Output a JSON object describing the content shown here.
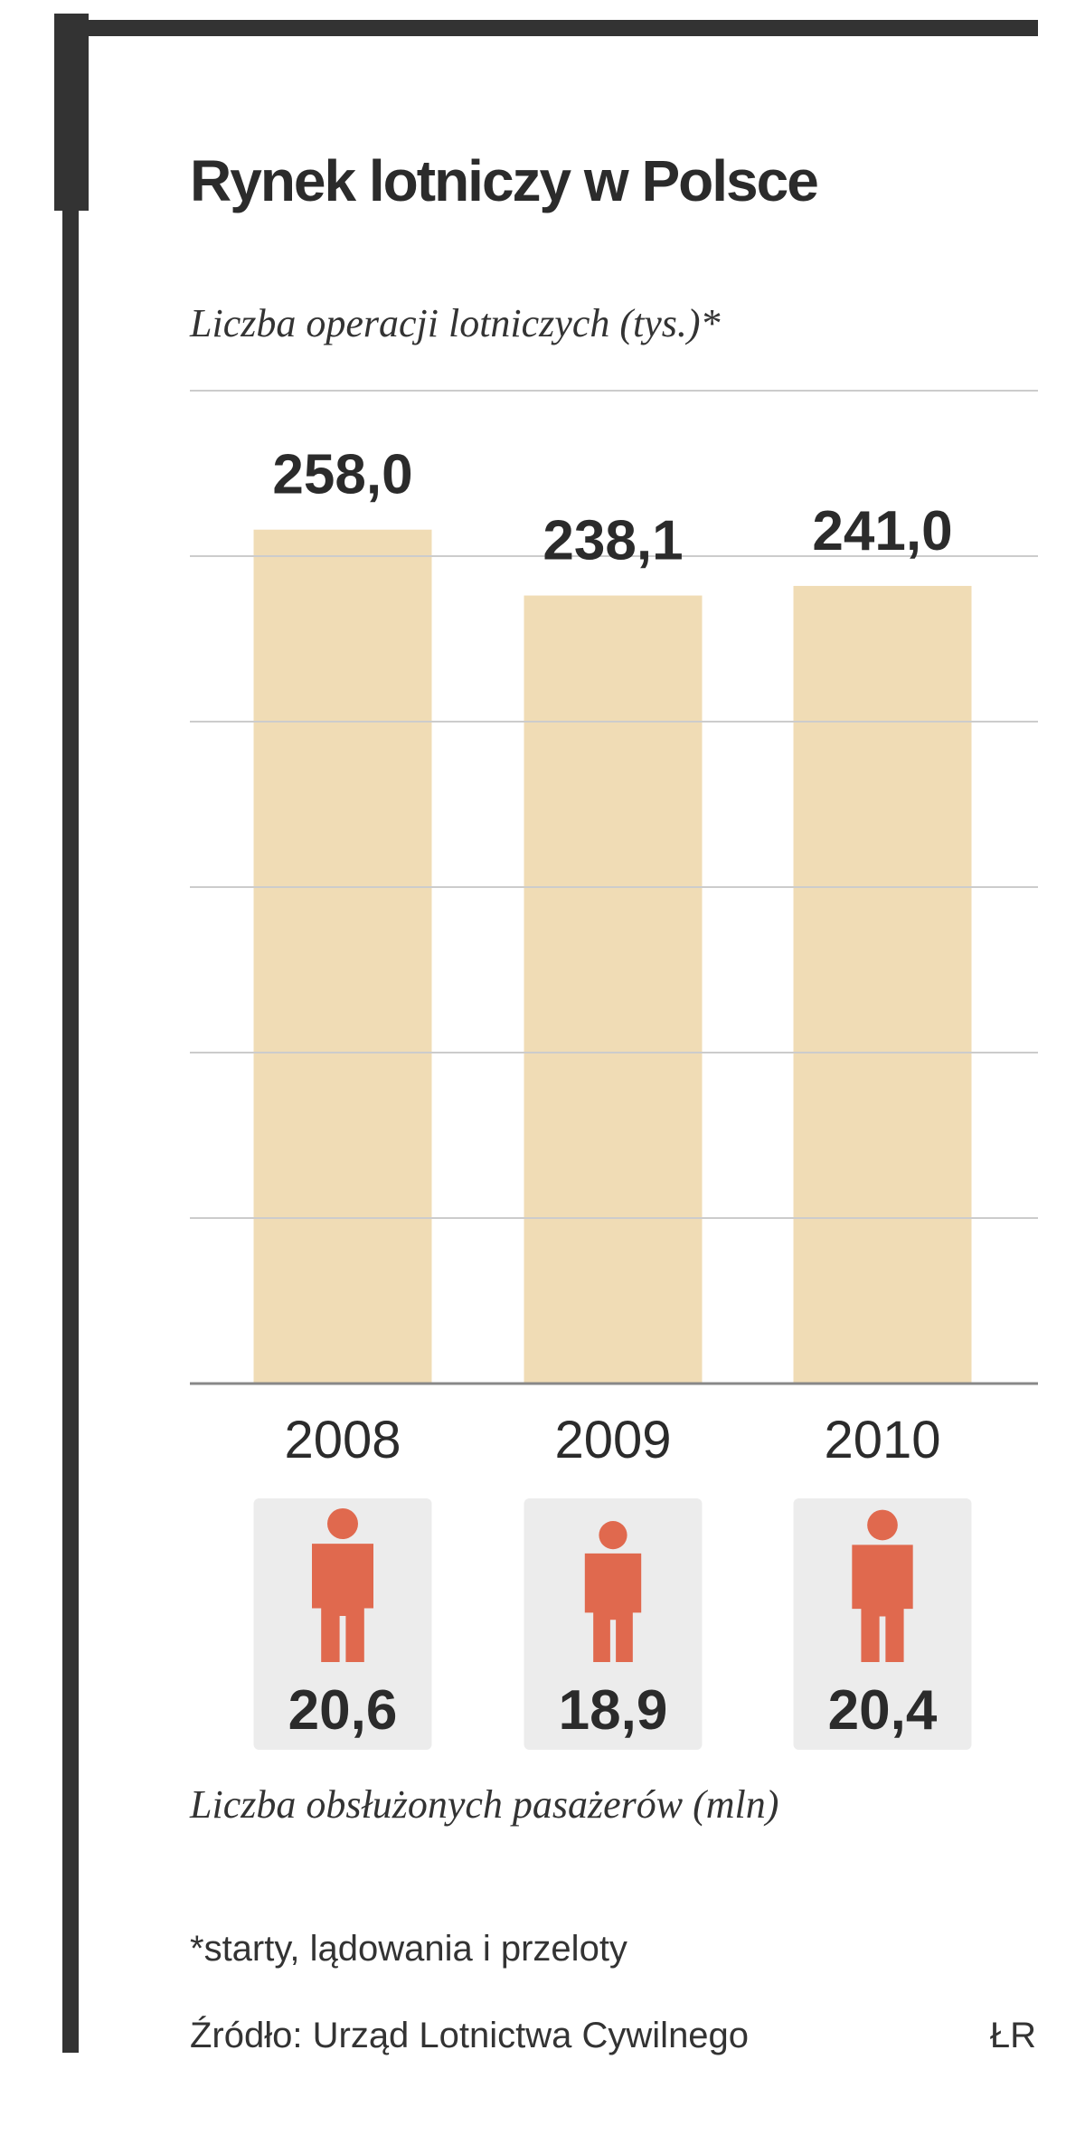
{
  "chart_data": {
    "type": "bar",
    "title": "Rynek lotniczy w Polsce",
    "subtitle": "Liczba operacji lotniczych (tys.)*",
    "categories": [
      "2008",
      "2009",
      "2010"
    ],
    "values": [
      258.0,
      238.1,
      241.0
    ],
    "value_labels": [
      "258,0",
      "238,1",
      "241,0"
    ],
    "color": "#f0dcb5",
    "ylim": [
      0,
      300
    ],
    "yticks": [
      0,
      50,
      100,
      150,
      200,
      250,
      300
    ],
    "grid": true,
    "passengers": {
      "title": "Liczba obsłużonych pasażerów (mln)",
      "values": [
        20.6,
        18.9,
        20.4
      ],
      "value_labels": [
        "20,6",
        "18,9",
        "20,4"
      ],
      "color": "#e0694e"
    }
  },
  "footnote": "*starty, lądowania i przeloty",
  "source": "Źródło: Urząd Lotnictwa Cywilnego",
  "credit": "ŁR"
}
